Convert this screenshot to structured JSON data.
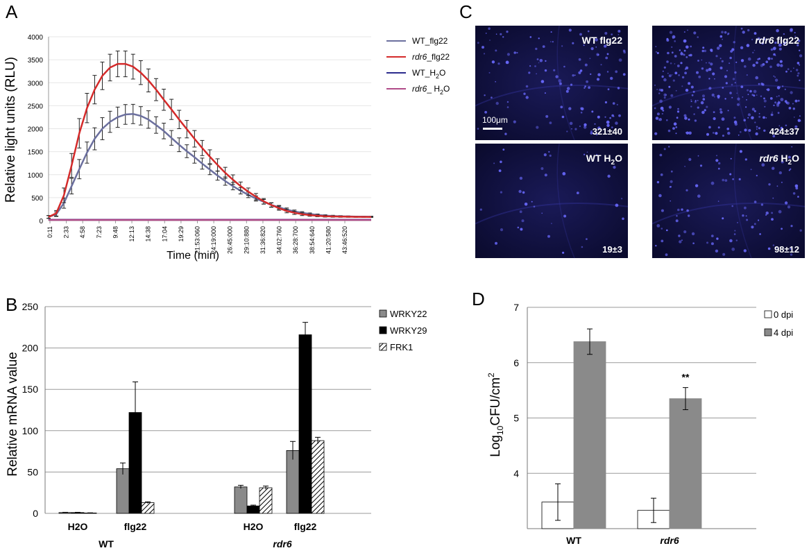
{
  "panel_labels": [
    "A",
    "B",
    "C",
    "D"
  ],
  "colors": {
    "wt_flg22": "#6b6f9e",
    "rdr6_flg22": "#d42a2a",
    "wt_h2o": "#2b2b8c",
    "rdr6_h2o": "#b04a88",
    "wrky22": "#8a8a8a",
    "wrky29": "#000000",
    "frk1": "#ffffff",
    "dpi0": "#ffffff",
    "dpi4": "#8a8a8a"
  },
  "chart_data": [
    {
      "id": "A",
      "type": "line",
      "title": "",
      "xlabel": "Time (min)",
      "ylabel": "Relative light units (RLU)",
      "ylim": [
        0,
        4000
      ],
      "y_ticks": [
        "0",
        "500",
        "1000",
        "1500",
        "2000",
        "2500",
        "3000",
        "3500",
        "4000"
      ],
      "x_tick_labels": [
        "0:11",
        "2:33",
        "4:58",
        "7:23",
        "9:48",
        "12:13",
        "14:38",
        "17:04",
        "19:29",
        "21:53:060",
        "24:19:000",
        "26:45:000",
        "29:10:880",
        "31:36:820",
        "34:02:760",
        "36:28:700",
        "38:54:640",
        "41:20:580",
        "43:46:520"
      ],
      "grid": true,
      "legend_position": "right",
      "series": [
        {
          "name": "WT_flg22",
          "sup": "",
          "italic": false,
          "values": [
            80,
            140,
            380,
            750,
            1120,
            1480,
            1780,
            2000,
            2150,
            2250,
            2310,
            2320,
            2280,
            2200,
            2080,
            1950,
            1800,
            1650,
            1510,
            1380,
            1240,
            1110,
            980,
            860,
            750,
            650,
            560,
            480,
            410,
            340,
            290,
            240,
            200,
            170,
            145,
            125,
            110,
            100,
            95,
            90,
            88,
            86,
            85
          ]
        },
        {
          "name": "rdr6_flg22",
          "sup": "",
          "italic": true,
          "values": [
            80,
            160,
            550,
            1200,
            1900,
            2450,
            2850,
            3150,
            3330,
            3410,
            3410,
            3350,
            3220,
            3050,
            2850,
            2630,
            2420,
            2200,
            1990,
            1780,
            1580,
            1390,
            1210,
            1040,
            890,
            750,
            630,
            520,
            420,
            340,
            270,
            210,
            170,
            140,
            120,
            105,
            95,
            90,
            86,
            84,
            82,
            81,
            80
          ]
        },
        {
          "name": "WT_H",
          "sup": "2",
          "suffix": "O",
          "italic": false,
          "values": [
            20,
            20,
            20,
            20,
            20,
            20,
            20,
            20,
            20,
            20,
            20,
            20,
            20,
            20,
            20,
            20,
            20,
            20,
            20,
            20,
            20,
            20,
            20,
            20,
            20,
            20,
            20,
            20,
            20,
            20,
            20,
            20,
            20,
            20,
            20,
            20,
            20,
            20,
            20,
            20,
            20,
            20,
            20
          ]
        },
        {
          "name": "rdr6_ H",
          "sup": "2",
          "suffix": "O",
          "italic": true,
          "values": [
            15,
            15,
            15,
            15,
            15,
            15,
            15,
            15,
            15,
            15,
            15,
            15,
            15,
            15,
            15,
            15,
            15,
            15,
            15,
            15,
            15,
            15,
            15,
            15,
            15,
            15,
            15,
            15,
            15,
            15,
            15,
            15,
            15,
            15,
            15,
            15,
            15,
            15,
            15,
            15,
            15,
            15,
            15
          ]
        }
      ],
      "error": {
        "WT_flg22": [
          30,
          50,
          110,
          170,
          210,
          230,
          240,
          240,
          230,
          220,
          215,
          210,
          200,
          190,
          180,
          170,
          160,
          150,
          140,
          130,
          120,
          110,
          100,
          90,
          80,
          70,
          60,
          55,
          50,
          45,
          40,
          35,
          30,
          25,
          22,
          20,
          18,
          16,
          14,
          12,
          10,
          10,
          10
        ],
        "rdr6_flg22": [
          30,
          60,
          160,
          260,
          320,
          320,
          310,
          300,
          290,
          280,
          280,
          270,
          260,
          250,
          240,
          230,
          220,
          200,
          190,
          180,
          165,
          150,
          135,
          120,
          105,
          90,
          80,
          70,
          60,
          50,
          45,
          40,
          35,
          30,
          25,
          20,
          18,
          16,
          14,
          12,
          10,
          10,
          10
        ]
      }
    },
    {
      "id": "B",
      "type": "bar",
      "title": "",
      "xlabel": "",
      "ylabel": "Relative mRNA value",
      "ylim": [
        0,
        250
      ],
      "y_ticks": [
        "0",
        "50",
        "100",
        "150",
        "200",
        "250"
      ],
      "grid": true,
      "legend_position": "right",
      "categories": [
        "H2O",
        "flg22",
        "H2O",
        "flg22"
      ],
      "groups": [
        {
          "label": "WT",
          "italic": false
        },
        {
          "label": "rdr6",
          "italic": true
        }
      ],
      "series": [
        {
          "name": "WRKY22",
          "values": [
            1,
            54,
            32,
            76
          ],
          "errors": [
            0.3,
            7,
            2,
            11
          ]
        },
        {
          "name": "WRKY29",
          "values": [
            1,
            122,
            9,
            216
          ],
          "errors": [
            0.3,
            37,
            1,
            15
          ]
        },
        {
          "name": "FRK1",
          "values": [
            0.5,
            13,
            31,
            88
          ],
          "errors": [
            0.2,
            1,
            2,
            4
          ]
        }
      ]
    },
    {
      "id": "D",
      "type": "bar",
      "title": "",
      "xlabel": "",
      "ylim": [
        3,
        7
      ],
      "y_ticks": [
        "4",
        "5",
        "6",
        "7"
      ],
      "grid": true,
      "legend_position": "right",
      "categories": [
        "WT",
        "rdr6"
      ],
      "series": [
        {
          "name": "0 dpi",
          "values": [
            3.48,
            3.33
          ],
          "errors": [
            0.33,
            0.22
          ]
        },
        {
          "name": "4 dpi",
          "values": [
            6.38,
            5.35
          ],
          "errors": [
            0.23,
            0.2
          ]
        }
      ],
      "annotations": [
        {
          "text": "**",
          "category": "rdr6",
          "series": "4 dpi"
        }
      ]
    }
  ],
  "panel_c": {
    "scale_bar": "100μm",
    "tiles": [
      {
        "pre": "WT ",
        "label": "flg22",
        "italic_pre": false,
        "sub": "",
        "post": "",
        "count": "321±40"
      },
      {
        "pre": "rdr6",
        "label": " flg22",
        "italic_pre": true,
        "sub": "",
        "post": "",
        "count": "424±37"
      },
      {
        "pre": "WT ",
        "label": "H",
        "italic_pre": false,
        "sub": "2",
        "post": "O",
        "count": "19±3"
      },
      {
        "pre": "rdr6",
        "label": " H",
        "italic_pre": true,
        "sub": "2",
        "post": "O",
        "count": "98±12"
      }
    ]
  },
  "panel_d_ylabel": {
    "pre": "Log",
    "sub1": "10",
    "mid": "CFU/cm",
    "sup": "2"
  }
}
